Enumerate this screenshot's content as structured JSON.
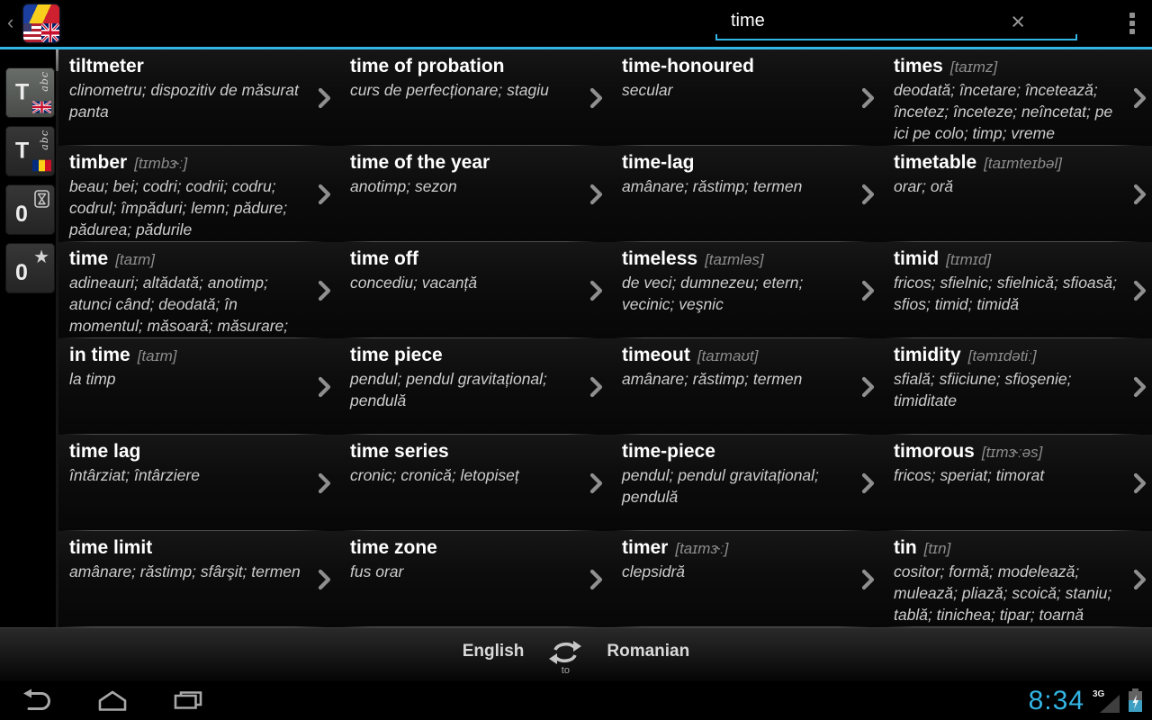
{
  "header": {
    "back_chevron": "‹",
    "search_value": "time",
    "clear_icon": "×"
  },
  "colors": {
    "accent": "#33B5E5",
    "divider": "#4c4c4c",
    "headword": "#ffffff",
    "translation": "#cdcdcd"
  },
  "sidebar": {
    "tabs": [
      {
        "label": "T",
        "sub": "abc",
        "flag": "en",
        "icon": "uk-flag",
        "selected": true
      },
      {
        "label": "T",
        "sub": "abc",
        "flag": "ro",
        "icon": "romania-flag",
        "selected": false
      },
      {
        "label": "0",
        "sub": "",
        "flag": "",
        "icon": "hourglass",
        "selected": false
      },
      {
        "label": "0",
        "sub": "",
        "flag": "",
        "icon": "star",
        "selected": false
      }
    ]
  },
  "entries": {
    "columns": [
      [
        {
          "word": "tiltmeter",
          "phonetic": "",
          "translation": "clinometru; dispozitiv de măsurat panta"
        },
        {
          "word": "timber",
          "phonetic": "[tɪmbɝː]",
          "translation": "beau; bei; codri; codrii; codru; codrul; împăduri; lemn; pădure; pădurea; pădurile"
        },
        {
          "word": "time",
          "phonetic": "[taɪm]",
          "translation": "adineauri; altădată; anotimp; atunci când; deodată; în momentul; măsoară; măsurare;"
        },
        {
          "word": "in time",
          "phonetic": "[taɪm]",
          "translation": "la timp"
        },
        {
          "word": "time lag",
          "phonetic": "",
          "translation": "întârziat; întârziere"
        },
        {
          "word": "time limit",
          "phonetic": "",
          "translation": "amânare; răstimp; sfârşit; termen"
        }
      ],
      [
        {
          "word": "time of probation",
          "phonetic": "",
          "translation": "curs de perfecționare; stagiu"
        },
        {
          "word": "time of the year",
          "phonetic": "",
          "translation": "anotimp; sezon"
        },
        {
          "word": "time off",
          "phonetic": "",
          "translation": "concediu; vacanță"
        },
        {
          "word": "time piece",
          "phonetic": "",
          "translation": "pendul; pendul gravitațional; pendulă"
        },
        {
          "word": "time series",
          "phonetic": "",
          "translation": "cronic; cronică; letopiseț"
        },
        {
          "word": "time zone",
          "phonetic": "",
          "translation": "fus orar"
        }
      ],
      [
        {
          "word": "time-honoured",
          "phonetic": "",
          "translation": "secular"
        },
        {
          "word": "time-lag",
          "phonetic": "",
          "translation": "amânare; răstimp; termen"
        },
        {
          "word": "timeless",
          "phonetic": "[taɪmləs]",
          "translation": "de veci; dumnezeu; etern; vecinic; veşnic"
        },
        {
          "word": "timeout",
          "phonetic": "[taɪmaʊt]",
          "translation": "amânare; răstimp; termen"
        },
        {
          "word": "time-piece",
          "phonetic": "",
          "translation": "pendul; pendul gravitațional; pendulă"
        },
        {
          "word": "timer",
          "phonetic": "[taɪmɝː]",
          "translation": "clepsidră"
        }
      ],
      [
        {
          "word": "times",
          "phonetic": "[taɪmz]",
          "translation": "deodată; încetare; încetează; încetez; înceteze; neîncetat; pe ici pe colo; timp; vreme"
        },
        {
          "word": "timetable",
          "phonetic": "[taɪmteɪbəl]",
          "translation": "orar; oră"
        },
        {
          "word": "timid",
          "phonetic": "[tɪmɪd]",
          "translation": "fricos; sfielnic; sfielnică; sfioasă; sfios; timid; timidă"
        },
        {
          "word": "timidity",
          "phonetic": "[təmɪdətiː]",
          "translation": "sfială; sfiiciune; sfioşenie; timiditate"
        },
        {
          "word": "timorous",
          "phonetic": "[tɪmɝːəs]",
          "translation": "fricos; speriat; timorat"
        },
        {
          "word": "tin",
          "phonetic": "[tɪn]",
          "translation": "cositor; formă; modelează; mulează; pliază; scoică; staniu; tablă; tinichea; tipar; toarnă"
        }
      ]
    ]
  },
  "footer": {
    "from_language": "English",
    "to_label": "to",
    "to_language": "Romanian"
  },
  "navbar": {
    "clock": "8:34",
    "network_label": "3G"
  }
}
